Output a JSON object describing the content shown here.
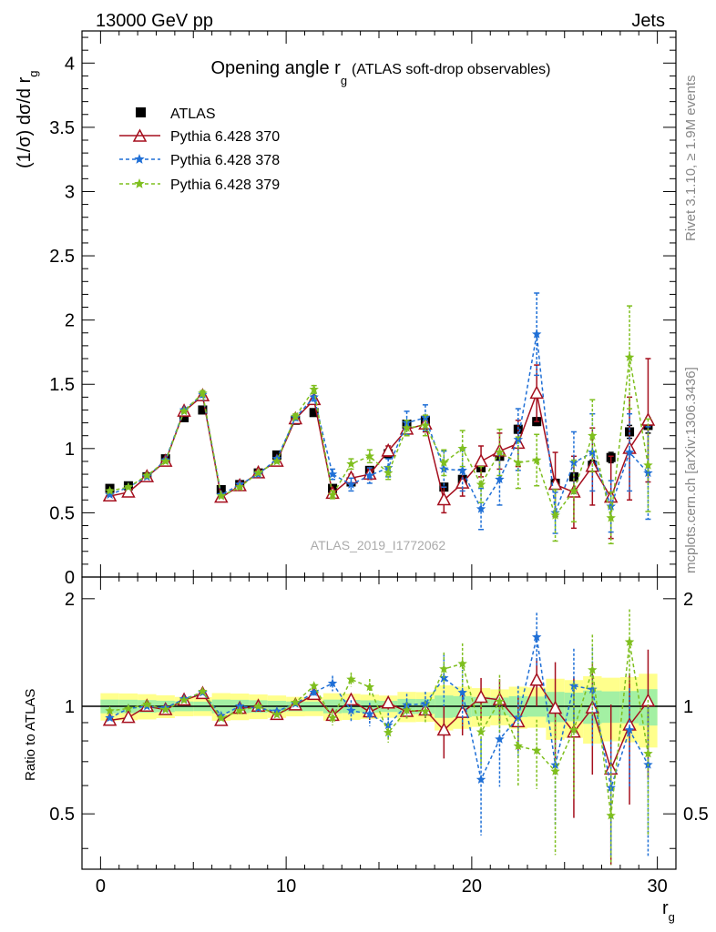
{
  "header": {
    "left": "13000 GeV pp",
    "right": "Jets"
  },
  "side_text": {
    "rivet": "Rivet 3.1.10, ≥ 1.9M events",
    "mcplots": "mcplots.cern.ch [arXiv:1306.3436]"
  },
  "watermark": "ATLAS_2019_I1772062",
  "chart_data": [
    {
      "type": "scatter",
      "title": "Opening angle r",
      "title_sub": "g",
      "title_suffix": "(ATLAS soft-drop observables)",
      "ylabel": "(1/σ) dσ/d r",
      "ylabel_sub": "g",
      "xlim": [
        -1,
        31
      ],
      "ylim": [
        0,
        4.25
      ],
      "x_ticks": [
        0,
        10,
        20,
        30
      ],
      "y_ticks": [
        0,
        0.5,
        1,
        1.5,
        2,
        2.5,
        3,
        3.5,
        4
      ],
      "legend_position": "top-left",
      "x": [
        0.5,
        1.5,
        2.5,
        3.5,
        4.5,
        5.5,
        6.5,
        7.5,
        8.5,
        9.5,
        10.5,
        11.5,
        12.5,
        13.5,
        14.5,
        15.5,
        16.5,
        17.5,
        18.5,
        19.5,
        20.5,
        21.5,
        22.5,
        23.5,
        24.5,
        25.5,
        26.5,
        27.5,
        28.5,
        29.5
      ],
      "series": [
        {
          "name": "ATLAS",
          "color": "#000000",
          "style": "square",
          "values": [
            0.69,
            0.71,
            0.78,
            0.92,
            1.24,
            1.3,
            0.68,
            0.72,
            0.81,
            0.95,
            1.22,
            1.28,
            0.69,
            0.74,
            0.83,
            0.96,
            1.19,
            1.22,
            0.7,
            0.76,
            0.85,
            0.94,
            1.15,
            1.21,
            0.73,
            0.78,
            0.87,
            0.93,
            1.13,
            1.18
          ],
          "errors": [
            0.01,
            0.01,
            0.01,
            0.01,
            0.01,
            0.01,
            0.01,
            0.01,
            0.01,
            0.01,
            0.01,
            0.01,
            0.01,
            0.01,
            0.01,
            0.01,
            0.02,
            0.02,
            0.02,
            0.02,
            0.02,
            0.02,
            0.03,
            0.03,
            0.03,
            0.03,
            0.04,
            0.04,
            0.05,
            0.06
          ]
        },
        {
          "name": "Pythia 6.428 370",
          "color": "#a50f1e",
          "style": "triangle-line",
          "values": [
            0.63,
            0.66,
            0.78,
            0.9,
            1.29,
            1.41,
            0.62,
            0.71,
            0.81,
            0.9,
            1.23,
            1.38,
            0.65,
            0.77,
            0.8,
            0.98,
            1.15,
            1.19,
            0.6,
            0.73,
            0.9,
            0.98,
            1.04,
            1.43,
            0.72,
            0.66,
            0.86,
            0.62,
            1.0,
            1.22
          ],
          "errors": [
            0.01,
            0.01,
            0.01,
            0.01,
            0.01,
            0.02,
            0.01,
            0.01,
            0.01,
            0.01,
            0.02,
            0.03,
            0.02,
            0.03,
            0.04,
            0.04,
            0.05,
            0.06,
            0.1,
            0.1,
            0.12,
            0.14,
            0.18,
            0.22,
            0.25,
            0.28,
            0.3,
            0.32,
            0.4,
            0.48
          ]
        },
        {
          "name": "Pythia 6.428 378",
          "color": "#1f6fd6",
          "style": "star-dash",
          "values": [
            0.64,
            0.7,
            0.78,
            0.91,
            1.3,
            1.42,
            0.64,
            0.72,
            0.8,
            0.92,
            1.24,
            1.4,
            0.8,
            0.72,
            0.79,
            0.85,
            1.2,
            1.24,
            0.84,
            0.83,
            0.53,
            0.76,
            1.07,
            1.89,
            0.5,
            0.89,
            0.97,
            0.55,
            0.97,
            0.81
          ],
          "errors": [
            0.01,
            0.01,
            0.01,
            0.01,
            0.01,
            0.02,
            0.01,
            0.01,
            0.01,
            0.01,
            0.02,
            0.03,
            0.04,
            0.05,
            0.06,
            0.07,
            0.09,
            0.1,
            0.14,
            0.16,
            0.16,
            0.2,
            0.24,
            0.32,
            0.16,
            0.24,
            0.3,
            0.2,
            0.3,
            0.36
          ]
        },
        {
          "name": "Pythia 6.428 379",
          "color": "#7fbf1f",
          "style": "star-dash",
          "values": [
            0.67,
            0.7,
            0.79,
            0.9,
            1.29,
            1.43,
            0.63,
            0.7,
            0.81,
            0.9,
            1.25,
            1.46,
            0.64,
            0.88,
            0.94,
            0.81,
            1.16,
            1.18,
            0.89,
            1.0,
            0.72,
            0.97,
            0.89,
            0.91,
            0.48,
            0.67,
            1.1,
            0.46,
            1.71,
            0.87
          ],
          "errors": [
            0.01,
            0.01,
            0.01,
            0.01,
            0.01,
            0.02,
            0.01,
            0.01,
            0.01,
            0.01,
            0.02,
            0.03,
            0.03,
            0.04,
            0.05,
            0.05,
            0.06,
            0.08,
            0.1,
            0.14,
            0.14,
            0.18,
            0.2,
            0.2,
            0.2,
            0.24,
            0.28,
            0.2,
            0.4,
            0.36
          ]
        }
      ]
    },
    {
      "type": "scatter",
      "ylabel": "Ratio to ATLAS",
      "xlabel": "r",
      "xlabel_sub": "g",
      "xlim": [
        -1,
        31
      ],
      "ylim": [
        0.35,
        2.3
      ],
      "x_ticks": [
        0,
        10,
        20,
        30
      ],
      "y_ticks": [
        0.5,
        1,
        2
      ],
      "reference_line": 1
    }
  ]
}
